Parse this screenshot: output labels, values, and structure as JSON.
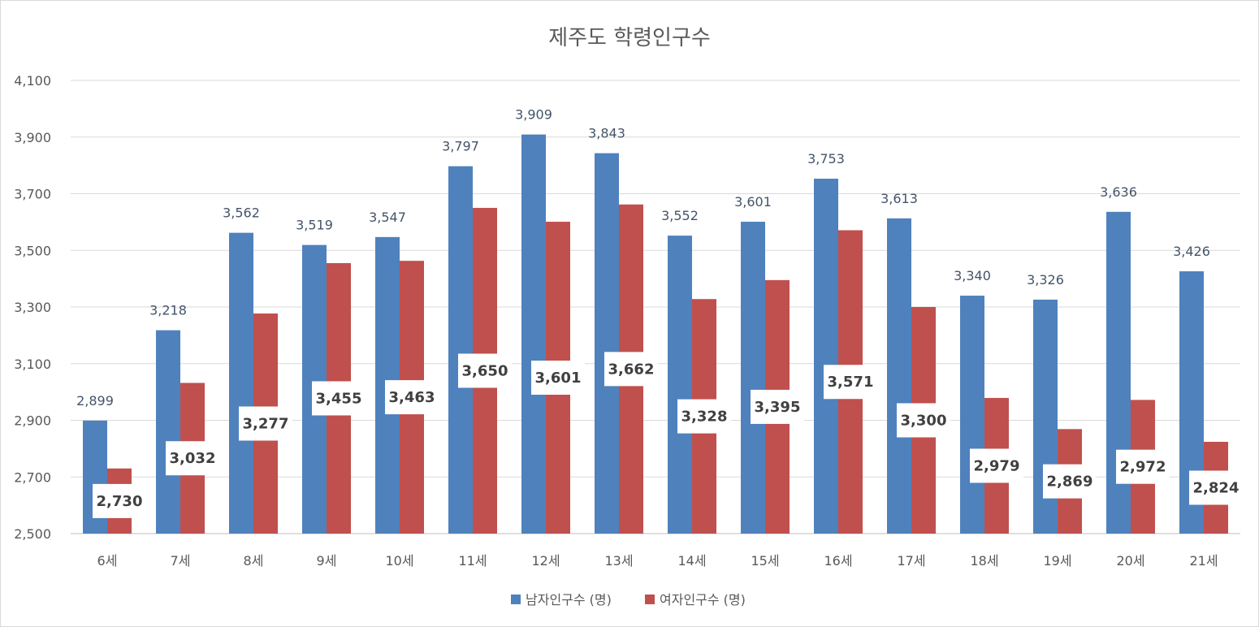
{
  "chart_data": {
    "type": "bar",
    "title": "제주도 학령인구수",
    "xlabel": "",
    "ylabel": "",
    "categories": [
      "6세",
      "7세",
      "8세",
      "9세",
      "10세",
      "11세",
      "12세",
      "13세",
      "14세",
      "15세",
      "16세",
      "17세",
      "18세",
      "19세",
      "20세",
      "21세"
    ],
    "series": [
      {
        "name": "남자인구수 (명)",
        "color": "#4f81bd",
        "values": [
          2899,
          3218,
          3562,
          3519,
          3547,
          3797,
          3909,
          3843,
          3552,
          3601,
          3753,
          3613,
          3340,
          3326,
          3636,
          3426
        ],
        "labels": [
          "2,899",
          "3,218",
          "3,562",
          "3,519",
          "3,547",
          "3,797",
          "3,909",
          "3,843",
          "3,552",
          "3,601",
          "3,753",
          "3,613",
          "3,340",
          "3,326",
          "3,636",
          "3,426"
        ]
      },
      {
        "name": "여자인구수 (명)",
        "color": "#c0504d",
        "values": [
          2730,
          3032,
          3277,
          3455,
          3463,
          3650,
          3601,
          3662,
          3328,
          3395,
          3571,
          3300,
          2979,
          2869,
          2972,
          2824
        ],
        "labels": [
          "2,730",
          "3,032",
          "3,277",
          "3,455",
          "3,463",
          "3,650",
          "3,601",
          "3,662",
          "3,328",
          "3,395",
          "3,571",
          "3,300",
          "2,979",
          "2,869",
          "2,972",
          "2,824"
        ]
      }
    ],
    "ylim": [
      2500,
      4100
    ],
    "yticks": [
      2500,
      2700,
      2900,
      3100,
      3300,
      3500,
      3700,
      3900,
      4100
    ],
    "ytick_labels": [
      "2,500",
      "2,700",
      "2,900",
      "3,100",
      "3,300",
      "3,500",
      "3,700",
      "3,900",
      "4,100"
    ],
    "grid": true,
    "legend_position": "bottom"
  }
}
